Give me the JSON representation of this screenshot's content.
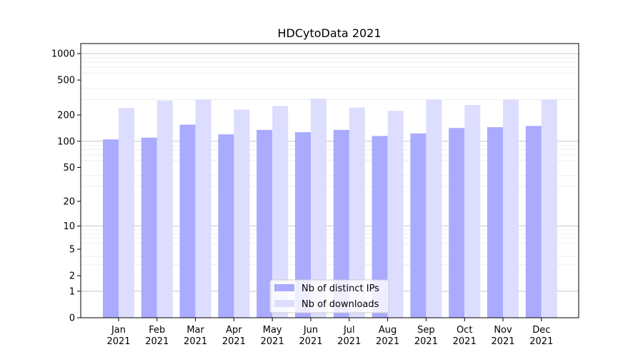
{
  "chart_data": {
    "type": "bar",
    "title": "HDCytoData 2021",
    "xlabel": "",
    "ylabel": "",
    "yscale": "log1p",
    "ylim": [
      0,
      1300
    ],
    "yticks": [
      0,
      1,
      2,
      5,
      10,
      20,
      50,
      100,
      200,
      500,
      1000
    ],
    "grid": true,
    "legend_position": "bottom-center",
    "categories": [
      {
        "month": "Jan",
        "year": "2021"
      },
      {
        "month": "Feb",
        "year": "2021"
      },
      {
        "month": "Mar",
        "year": "2021"
      },
      {
        "month": "Apr",
        "year": "2021"
      },
      {
        "month": "May",
        "year": "2021"
      },
      {
        "month": "Jun",
        "year": "2021"
      },
      {
        "month": "Jul",
        "year": "2021"
      },
      {
        "month": "Aug",
        "year": "2021"
      },
      {
        "month": "Sep",
        "year": "2021"
      },
      {
        "month": "Oct",
        "year": "2021"
      },
      {
        "month": "Nov",
        "year": "2021"
      },
      {
        "month": "Dec",
        "year": "2021"
      }
    ],
    "series": [
      {
        "name": "Nb of distinct IPs",
        "color": "#aaaaff",
        "values": [
          105,
          110,
          155,
          120,
          135,
          127,
          135,
          115,
          123,
          142,
          145,
          150
        ]
      },
      {
        "name": "Nb of downloads",
        "color": "#ddddff",
        "values": [
          240,
          292,
          300,
          230,
          253,
          307,
          243,
          223,
          300,
          260,
          300,
          300
        ]
      }
    ]
  }
}
